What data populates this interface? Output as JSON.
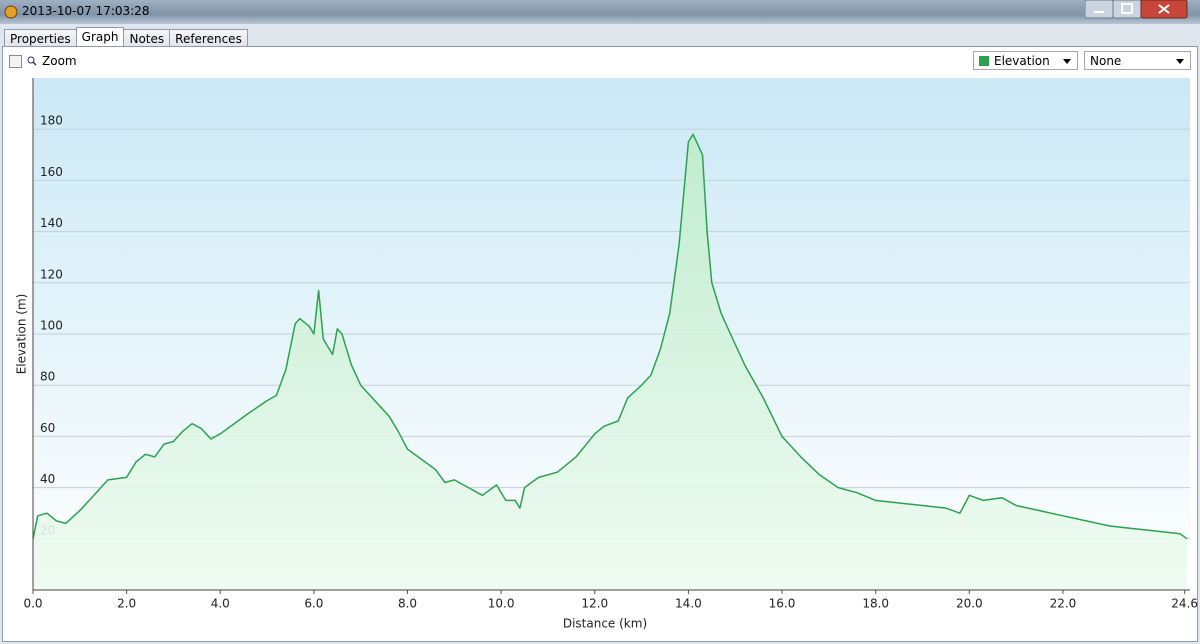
{
  "window": {
    "title": "2013-10-07 17:03:28"
  },
  "tabs": [
    "Properties",
    "Graph",
    "Notes",
    "References"
  ],
  "active_tab": 1,
  "toolbar": {
    "zoom_label": "Zoom",
    "second_select": "None"
  },
  "chart_data": {
    "type": "area",
    "xlabel": "Distance (km)",
    "ylabel": "Elevation (m)",
    "x": [
      0.0,
      0.1,
      0.3,
      0.5,
      0.7,
      1.0,
      1.3,
      1.6,
      2.0,
      2.2,
      2.4,
      2.6,
      2.8,
      3.0,
      3.2,
      3.4,
      3.6,
      3.8,
      4.0,
      4.3,
      4.6,
      5.0,
      5.2,
      5.4,
      5.6,
      5.7,
      5.9,
      6.0,
      6.1,
      6.2,
      6.4,
      6.5,
      6.6,
      6.8,
      7.0,
      7.3,
      7.6,
      7.8,
      8.0,
      8.3,
      8.6,
      8.8,
      9.0,
      9.3,
      9.6,
      9.9,
      10.1,
      10.3,
      10.4,
      10.5,
      10.8,
      11.2,
      11.6,
      12.0,
      12.2,
      12.5,
      12.7,
      13.0,
      13.2,
      13.4,
      13.6,
      13.8,
      14.0,
      14.1,
      14.3,
      14.4,
      14.5,
      14.7,
      14.9,
      15.2,
      15.6,
      16.0,
      16.4,
      16.8,
      17.2,
      17.6,
      18.0,
      18.5,
      19.0,
      19.5,
      19.8,
      20.0,
      20.3,
      20.7,
      21.0,
      21.5,
      22.0,
      22.5,
      23.0,
      23.5,
      24.0,
      24.5,
      24.65
    ],
    "series": [
      {
        "name": "Elevation",
        "color": "#2ca24f",
        "values": [
          20,
          29,
          30,
          27,
          26,
          31,
          37,
          43,
          44,
          50,
          53,
          52,
          57,
          58,
          62,
          65,
          63,
          59,
          61,
          65,
          69,
          74,
          76,
          86,
          104,
          106,
          103,
          100,
          117,
          98,
          92,
          102,
          100,
          88,
          80,
          74,
          68,
          62,
          55,
          51,
          47,
          42,
          43,
          40,
          37,
          41,
          35,
          35,
          32,
          40,
          44,
          46,
          52,
          61,
          64,
          66,
          75,
          80,
          84,
          94,
          108,
          135,
          175,
          178,
          170,
          140,
          120,
          108,
          100,
          88,
          75,
          60,
          52,
          45,
          40,
          38,
          35,
          34,
          33,
          32,
          30,
          37,
          35,
          36,
          33,
          31,
          29,
          27,
          25,
          24,
          23,
          22,
          20
        ]
      }
    ],
    "xlim": [
      0,
      24.65
    ],
    "ylim": [
      0,
      200
    ],
    "xticks": [
      {
        "value": 0,
        "label": "0.0"
      },
      {
        "value": 2,
        "label": "2.0"
      },
      {
        "value": 4,
        "label": "4.0"
      },
      {
        "value": 6,
        "label": "6.0"
      },
      {
        "value": 8,
        "label": "8.0"
      },
      {
        "value": 10,
        "label": "10.0"
      },
      {
        "value": 12,
        "label": "12.0"
      },
      {
        "value": 14,
        "label": "14.0"
      },
      {
        "value": 16,
        "label": "16.0"
      },
      {
        "value": 18,
        "label": "18.0"
      },
      {
        "value": 20,
        "label": "20.0"
      },
      {
        "value": 22,
        "label": "22.0"
      },
      {
        "value": 24.6,
        "label": "24.6"
      }
    ],
    "yticks": [
      20,
      40,
      60,
      80,
      100,
      120,
      140,
      160,
      180
    ],
    "grid": true
  }
}
